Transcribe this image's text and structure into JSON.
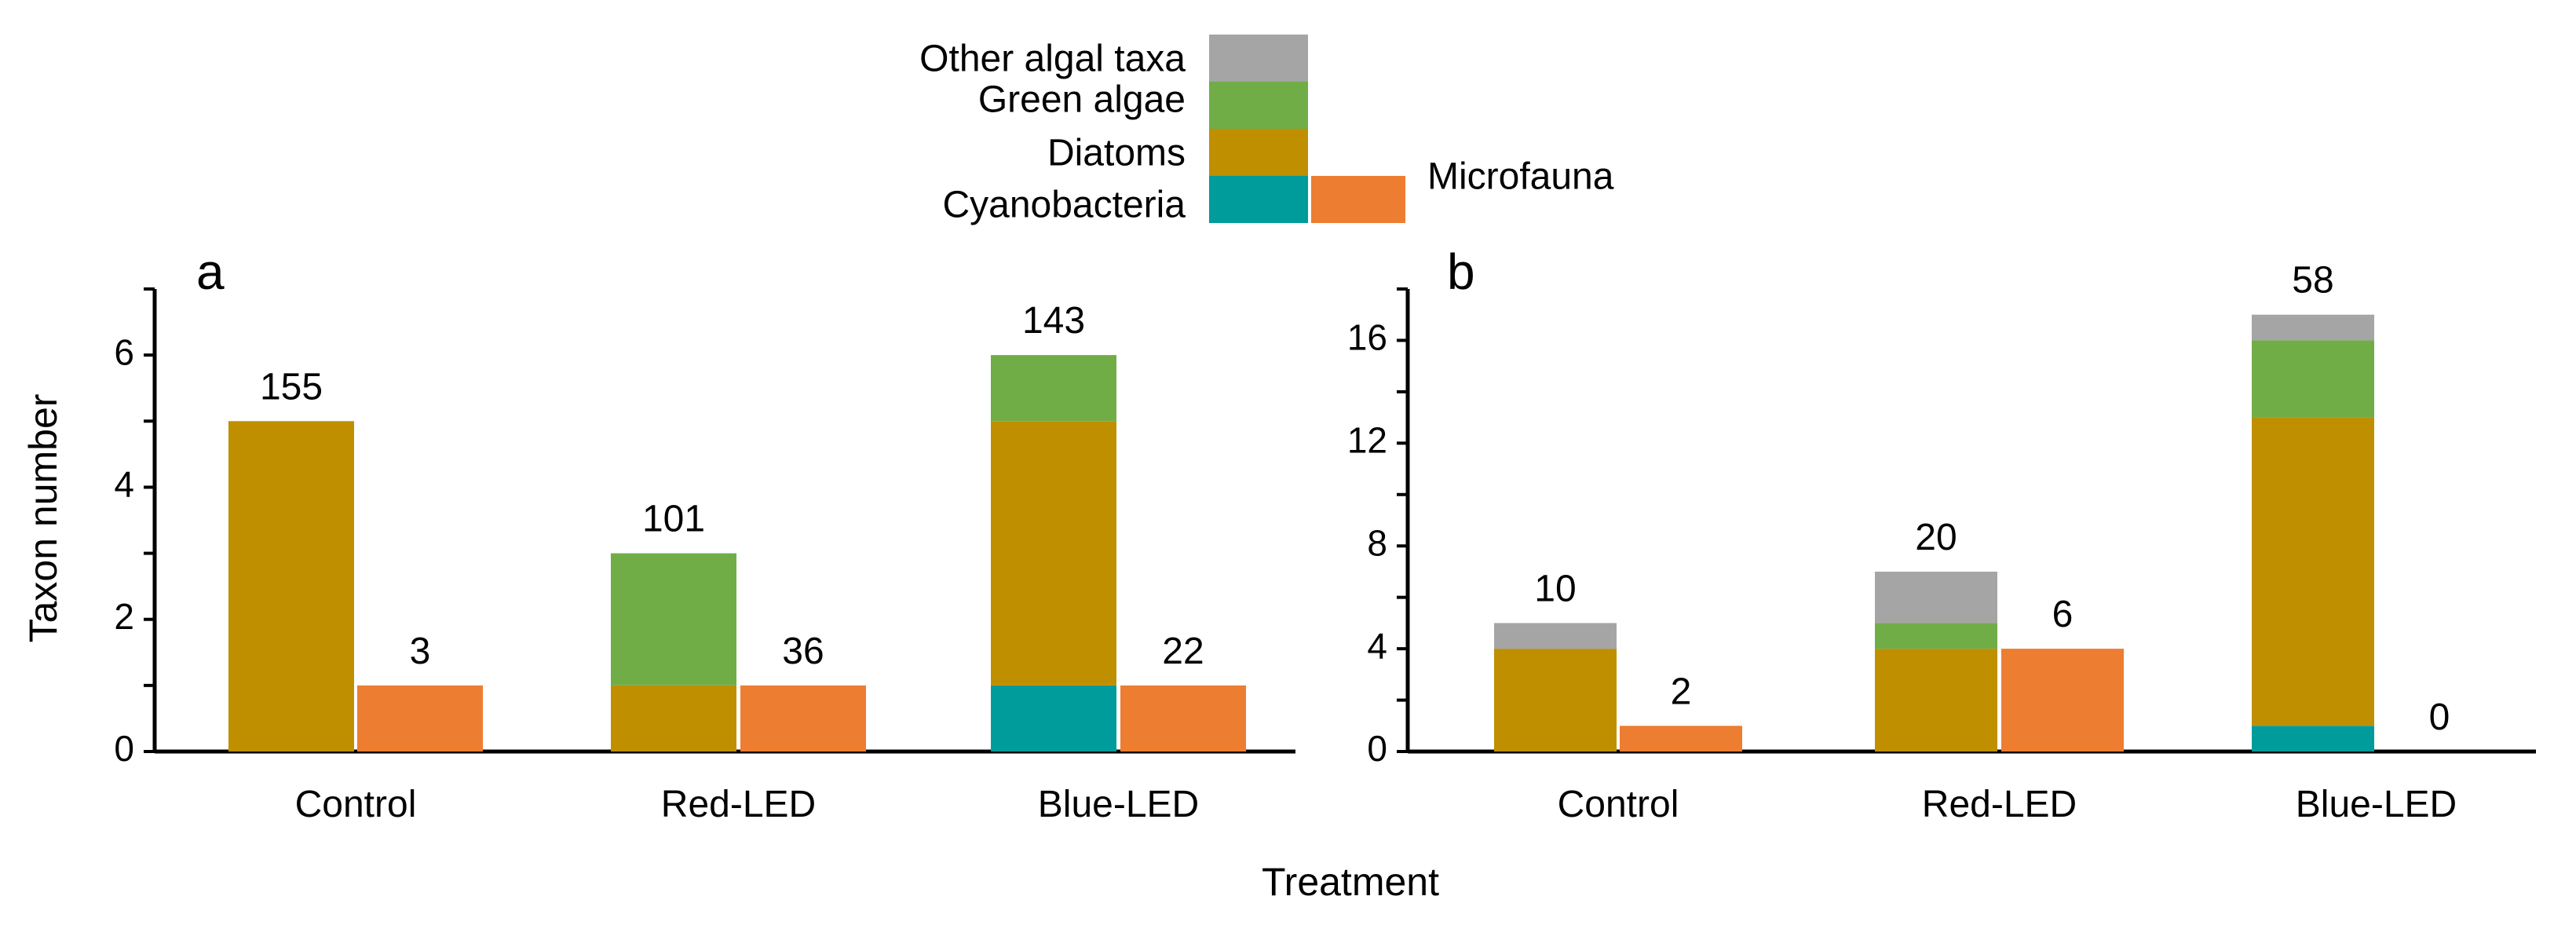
{
  "chart_data": {
    "type": "bar",
    "subtype": "stacked-grouped",
    "xlabel": "Treatment",
    "ylabel": "Taxon number",
    "categories": [
      "Control",
      "Red-LED",
      "Blue-LED"
    ],
    "legend": {
      "algal_entries": [
        "Other algal taxa",
        "Green algae",
        "Diatoms",
        "Cyanobacteria"
      ],
      "fauna_entry": "Microfauna",
      "placement": "top-center"
    },
    "colors": {
      "Cyanobacteria": "#009b9b",
      "Diatoms": "#bf8f00",
      "Green algae": "#70ad47",
      "Other algal taxa": "#a5a5a5",
      "Microfauna": "#ed7d31"
    },
    "panels": [
      {
        "label": "a",
        "ylim": [
          0,
          7
        ],
        "yticks": [
          0,
          2,
          4,
          6
        ],
        "algae": {
          "Cyanobacteria": [
            0,
            0,
            1
          ],
          "Diatoms": [
            5,
            1,
            4
          ],
          "Green algae": [
            0,
            2,
            1
          ],
          "Other algal taxa": [
            0,
            0,
            0
          ]
        },
        "microfauna": [
          1,
          1,
          1
        ],
        "algae_labels": [
          "155",
          "101",
          "143"
        ],
        "microfauna_labels": [
          "3",
          "36",
          "22"
        ]
      },
      {
        "label": "b",
        "ylim": [
          0,
          18
        ],
        "yticks": [
          0,
          4,
          8,
          12,
          16
        ],
        "algae": {
          "Cyanobacteria": [
            0,
            0,
            1
          ],
          "Diatoms": [
            4,
            4,
            12
          ],
          "Green algae": [
            0,
            1,
            3
          ],
          "Other algal taxa": [
            1,
            2,
            1
          ]
        },
        "microfauna": [
          1,
          4,
          0
        ],
        "algae_labels": [
          "10",
          "20",
          "58"
        ],
        "microfauna_labels": [
          "2",
          "6",
          "0"
        ]
      }
    ]
  }
}
